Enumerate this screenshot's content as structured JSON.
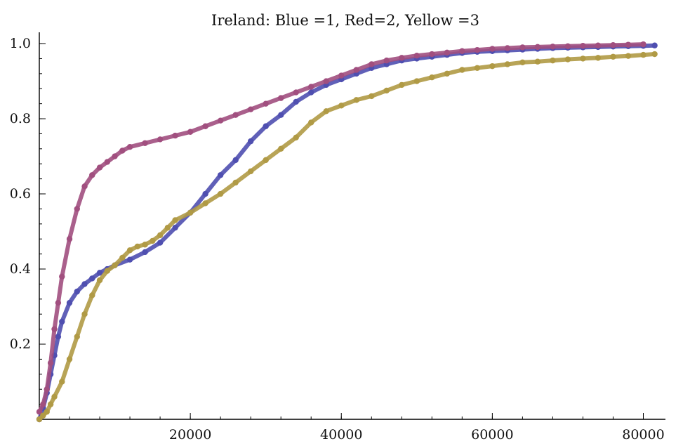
{
  "chart_data": {
    "type": "scatter",
    "title": "Ireland: Blue =1, Red=2, Yellow =3",
    "xlabel": "",
    "ylabel": "",
    "xlim": [
      0,
      82000
    ],
    "ylim": [
      0,
      1.03
    ],
    "x_ticks": [
      20000,
      40000,
      60000,
      80000
    ],
    "x_tick_labels": [
      "20000",
      "40000",
      "60000",
      "80000"
    ],
    "x_minor_step": 4000,
    "y_ticks": [
      0.2,
      0.4,
      0.6,
      0.8,
      1.0
    ],
    "y_tick_labels": [
      "0.2",
      "0.4",
      "0.6",
      "0.8",
      "1.0"
    ],
    "y_minor_step": 0.04,
    "grid": false,
    "legend": "none",
    "series": [
      {
        "color": "#4f4fb0",
        "points": [
          [
            0,
            0
          ],
          [
            500,
            0.03
          ],
          [
            1000,
            0.07
          ],
          [
            1500,
            0.12
          ],
          [
            2000,
            0.17
          ],
          [
            2500,
            0.22
          ],
          [
            3000,
            0.26
          ],
          [
            4000,
            0.31
          ],
          [
            5000,
            0.34
          ],
          [
            6000,
            0.36
          ],
          [
            7000,
            0.375
          ],
          [
            8000,
            0.39
          ],
          [
            9000,
            0.4
          ],
          [
            10000,
            0.41
          ],
          [
            12000,
            0.425
          ],
          [
            14000,
            0.445
          ],
          [
            16000,
            0.47
          ],
          [
            18000,
            0.51
          ],
          [
            20000,
            0.55
          ],
          [
            22000,
            0.6
          ],
          [
            24000,
            0.65
          ],
          [
            26000,
            0.69
          ],
          [
            28000,
            0.74
          ],
          [
            30000,
            0.78
          ],
          [
            32000,
            0.81
          ],
          [
            34000,
            0.845
          ],
          [
            36000,
            0.87
          ],
          [
            38000,
            0.89
          ],
          [
            40000,
            0.905
          ],
          [
            42000,
            0.92
          ],
          [
            44000,
            0.935
          ],
          [
            46000,
            0.945
          ],
          [
            48000,
            0.955
          ],
          [
            50000,
            0.96
          ],
          [
            52000,
            0.965
          ],
          [
            54000,
            0.97
          ],
          [
            56000,
            0.975
          ],
          [
            58000,
            0.978
          ],
          [
            60000,
            0.98
          ],
          [
            62000,
            0.982
          ],
          [
            64000,
            0.984
          ],
          [
            66000,
            0.986
          ],
          [
            68000,
            0.988
          ],
          [
            70000,
            0.989
          ],
          [
            72000,
            0.99
          ],
          [
            74000,
            0.991
          ],
          [
            76000,
            0.992
          ],
          [
            78000,
            0.993
          ],
          [
            80000,
            0.994
          ],
          [
            81500,
            0.995
          ]
        ]
      },
      {
        "color": "#a14f7f",
        "points": [
          [
            0,
            0.02
          ],
          [
            500,
            0.04
          ],
          [
            1000,
            0.08
          ],
          [
            1500,
            0.15
          ],
          [
            2000,
            0.24
          ],
          [
            2500,
            0.31
          ],
          [
            3000,
            0.38
          ],
          [
            4000,
            0.48
          ],
          [
            5000,
            0.56
          ],
          [
            6000,
            0.62
          ],
          [
            7000,
            0.65
          ],
          [
            8000,
            0.67
          ],
          [
            9000,
            0.685
          ],
          [
            10000,
            0.7
          ],
          [
            11000,
            0.715
          ],
          [
            12000,
            0.725
          ],
          [
            14000,
            0.735
          ],
          [
            16000,
            0.745
          ],
          [
            18000,
            0.755
          ],
          [
            20000,
            0.765
          ],
          [
            22000,
            0.78
          ],
          [
            24000,
            0.795
          ],
          [
            26000,
            0.81
          ],
          [
            28000,
            0.825
          ],
          [
            30000,
            0.84
          ],
          [
            32000,
            0.855
          ],
          [
            34000,
            0.87
          ],
          [
            36000,
            0.885
          ],
          [
            38000,
            0.9
          ],
          [
            40000,
            0.915
          ],
          [
            42000,
            0.93
          ],
          [
            44000,
            0.945
          ],
          [
            46000,
            0.955
          ],
          [
            48000,
            0.962
          ],
          [
            50000,
            0.968
          ],
          [
            52000,
            0.972
          ],
          [
            54000,
            0.976
          ],
          [
            56000,
            0.98
          ],
          [
            58000,
            0.983
          ],
          [
            60000,
            0.986
          ],
          [
            62000,
            0.988
          ],
          [
            64000,
            0.99
          ],
          [
            66000,
            0.991
          ],
          [
            68000,
            0.992
          ],
          [
            70000,
            0.993
          ],
          [
            72000,
            0.994
          ],
          [
            74000,
            0.995
          ],
          [
            76000,
            0.996
          ],
          [
            78000,
            0.997
          ],
          [
            80000,
            0.998
          ]
        ]
      },
      {
        "color": "#b09a45",
        "points": [
          [
            0,
            0
          ],
          [
            500,
            0.01
          ],
          [
            1000,
            0.02
          ],
          [
            1500,
            0.04
          ],
          [
            2000,
            0.06
          ],
          [
            3000,
            0.1
          ],
          [
            4000,
            0.16
          ],
          [
            5000,
            0.22
          ],
          [
            6000,
            0.28
          ],
          [
            7000,
            0.33
          ],
          [
            8000,
            0.37
          ],
          [
            9000,
            0.395
          ],
          [
            10000,
            0.41
          ],
          [
            11000,
            0.43
          ],
          [
            12000,
            0.45
          ],
          [
            13000,
            0.46
          ],
          [
            14000,
            0.465
          ],
          [
            15000,
            0.475
          ],
          [
            16000,
            0.49
          ],
          [
            17000,
            0.51
          ],
          [
            18000,
            0.53
          ],
          [
            20000,
            0.55
          ],
          [
            22000,
            0.575
          ],
          [
            24000,
            0.6
          ],
          [
            26000,
            0.63
          ],
          [
            28000,
            0.66
          ],
          [
            30000,
            0.69
          ],
          [
            32000,
            0.72
          ],
          [
            34000,
            0.75
          ],
          [
            36000,
            0.79
          ],
          [
            38000,
            0.82
          ],
          [
            40000,
            0.835
          ],
          [
            42000,
            0.85
          ],
          [
            44000,
            0.86
          ],
          [
            46000,
            0.875
          ],
          [
            48000,
            0.89
          ],
          [
            50000,
            0.9
          ],
          [
            52000,
            0.91
          ],
          [
            54000,
            0.92
          ],
          [
            56000,
            0.93
          ],
          [
            58000,
            0.935
          ],
          [
            60000,
            0.94
          ],
          [
            62000,
            0.945
          ],
          [
            64000,
            0.95
          ],
          [
            66000,
            0.952
          ],
          [
            68000,
            0.955
          ],
          [
            70000,
            0.958
          ],
          [
            72000,
            0.96
          ],
          [
            74000,
            0.962
          ],
          [
            76000,
            0.965
          ],
          [
            78000,
            0.967
          ],
          [
            80000,
            0.97
          ],
          [
            81500,
            0.972
          ]
        ]
      }
    ]
  }
}
